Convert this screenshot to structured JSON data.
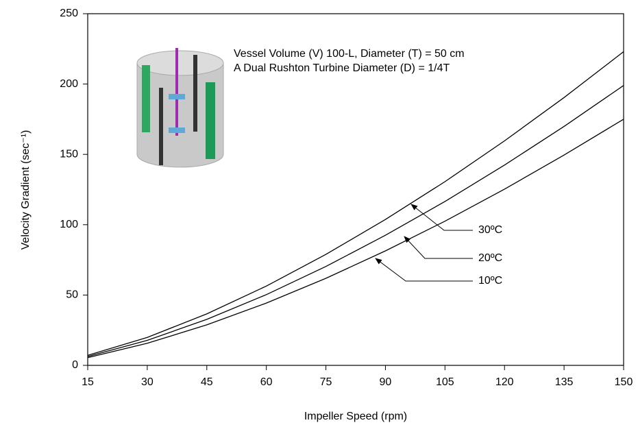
{
  "chart_data": {
    "type": "line",
    "x_label": "Impeller Speed (rpm)",
    "y_label": "Velocity Gradient (sec⁻¹)",
    "annotations": [
      "Vessel Volume (V) 100-L, Diameter (T) = 50 cm",
      "A Dual Rushton Turbine Diameter (D)  = 1/4T"
    ],
    "x": [
      15,
      30,
      45,
      60,
      75,
      90,
      105,
      120,
      135,
      150
    ],
    "series": [
      {
        "name": "30ºC",
        "color": "#000000",
        "values": [
          7.1,
          19.9,
          36.6,
          56.4,
          78.9,
          103.7,
          130.6,
          159.6,
          190.4,
          223
        ]
      },
      {
        "name": "20ºC",
        "color": "#000000",
        "values": [
          6.3,
          17.8,
          32.7,
          50.3,
          70.3,
          92.5,
          116.5,
          142.4,
          169.9,
          199
        ]
      },
      {
        "name": "10ºC",
        "color": "#000000",
        "values": [
          5.5,
          15.7,
          28.8,
          44.3,
          61.9,
          81.4,
          102.5,
          125.3,
          149.5,
          175
        ]
      }
    ],
    "xlim": [
      15,
      150
    ],
    "xticks": [
      15,
      30,
      45,
      60,
      75,
      90,
      105,
      120,
      135,
      150
    ],
    "ylim": [
      0,
      250
    ],
    "yticks": [
      0,
      50,
      100,
      150,
      200,
      250
    ]
  }
}
